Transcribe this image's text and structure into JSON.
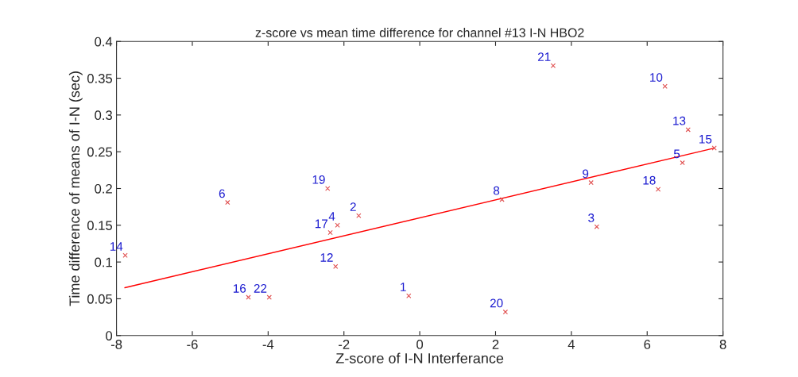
{
  "chart_data": {
    "type": "scatter",
    "title": "z-score vs mean time difference for channel #13 I-N HBO2",
    "xlabel": "Z-score of I-N Interferance",
    "ylabel": "Time difference of means of I-N (sec)",
    "grid": false,
    "legend": false,
    "xlim": [
      -8,
      8
    ],
    "xticks": [
      -8,
      -6,
      -4,
      -2,
      0,
      2,
      4,
      6,
      8
    ],
    "ylim": [
      0,
      0.4
    ],
    "yticks": [
      0,
      0.05,
      0.1,
      0.15,
      0.2,
      0.25,
      0.3,
      0.35,
      0.4
    ],
    "series": [
      {
        "marker": "cross",
        "color": "#e05050",
        "x": [
          -0.29,
          -1.61,
          4.67,
          -2.17,
          6.93,
          -5.07,
          -2.36,
          2.17,
          4.52,
          6.47,
          -2.22,
          7.08,
          -7.77,
          7.77,
          -4.52,
          6.29,
          -2.43,
          2.26,
          3.52,
          -3.97
        ],
        "values": [
          0.054,
          0.163,
          0.148,
          0.15,
          0.235,
          0.181,
          0.14,
          0.185,
          0.208,
          0.339,
          0.094,
          0.28,
          0.109,
          0.255,
          0.052,
          0.199,
          0.2,
          0.032,
          0.367,
          0.052
        ]
      },
      {
        "type": "line",
        "marker": "none",
        "color": "#ff0000",
        "x": [
          -7.78,
          7.77
        ],
        "values": [
          0.065,
          0.255
        ]
      }
    ],
    "annotations": [
      {
        "text": "1",
        "x": -0.29,
        "y": 0.054
      },
      {
        "text": "2",
        "x": -1.61,
        "y": 0.163
      },
      {
        "text": "3",
        "x": 4.67,
        "y": 0.148
      },
      {
        "text": "4",
        "x": -2.17,
        "y": 0.15
      },
      {
        "text": "5",
        "x": 6.93,
        "y": 0.235
      },
      {
        "text": "6",
        "x": -5.07,
        "y": 0.181
      },
      {
        "text": "17",
        "x": -2.36,
        "y": 0.14
      },
      {
        "text": "8",
        "x": 2.17,
        "y": 0.185
      },
      {
        "text": "9",
        "x": 4.52,
        "y": 0.208
      },
      {
        "text": "10",
        "x": 6.47,
        "y": 0.339
      },
      {
        "text": "12",
        "x": -2.22,
        "y": 0.094
      },
      {
        "text": "13",
        "x": 7.08,
        "y": 0.28
      },
      {
        "text": "14",
        "x": -7.77,
        "y": 0.109
      },
      {
        "text": "15",
        "x": 7.77,
        "y": 0.255
      },
      {
        "text": "16",
        "x": -4.52,
        "y": 0.052
      },
      {
        "text": "18",
        "x": 6.29,
        "y": 0.199
      },
      {
        "text": "19",
        "x": -2.43,
        "y": 0.2
      },
      {
        "text": "20",
        "x": 2.26,
        "y": 0.032
      },
      {
        "text": "21",
        "x": 3.52,
        "y": 0.367
      },
      {
        "text": "22",
        "x": -3.97,
        "y": 0.052
      }
    ]
  }
}
